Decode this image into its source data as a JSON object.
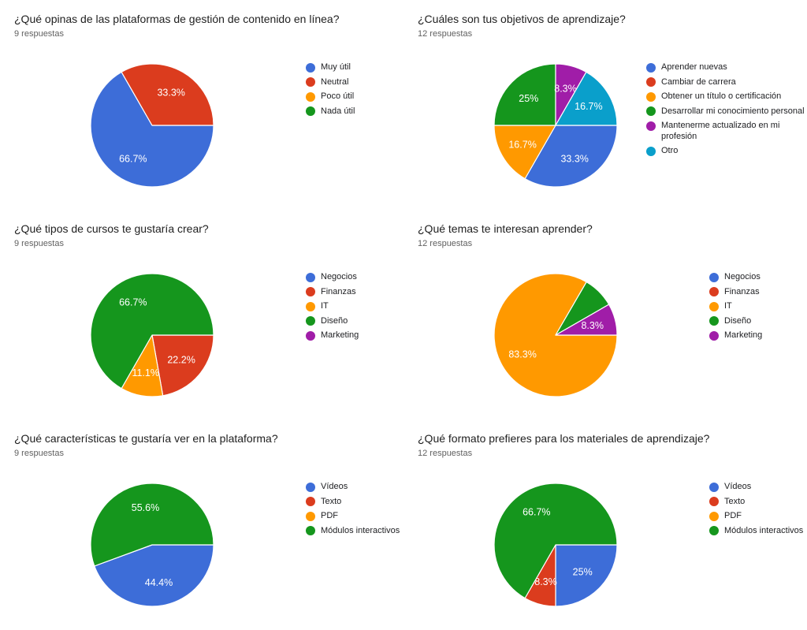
{
  "palette": {
    "blue": "#3D6DD8",
    "red": "#DB3C1E",
    "orange": "#FF9900",
    "green": "#15961D",
    "purple": "#A01DA8",
    "cyan": "#0A9FCB"
  },
  "chart_data": [
    {
      "type": "pie",
      "title": "¿Qué opinas de las plataformas de gestión de contenido en línea?",
      "subtitle": "9 respuestas",
      "legend_position": "right",
      "start_angle_clockwise_from_top_deg": 90,
      "categories": [
        "Muy útil",
        "Neutral",
        "Poco útil",
        "Nada útil"
      ],
      "colors": [
        "blue",
        "red",
        "orange",
        "green"
      ],
      "values_pct": [
        66.7,
        33.3,
        0,
        0
      ],
      "slice_labels": [
        "66.7%",
        "33.3%",
        "",
        ""
      ]
    },
    {
      "type": "pie",
      "title": "¿Cuáles son tus objetivos de aprendizaje?",
      "subtitle": "12 respuestas",
      "legend_position": "right",
      "start_angle_clockwise_from_top_deg": 90,
      "categories": [
        "Aprender nuevas",
        "Cambiar de carrera",
        "Obtener un título o certificación",
        "Desarrollar mi conocimiento personal",
        "Mantenerme actualizado en mi profesión",
        "Otro"
      ],
      "colors": [
        "blue",
        "red",
        "orange",
        "green",
        "purple",
        "cyan"
      ],
      "values_pct": [
        33.3,
        0,
        16.7,
        25,
        8.3,
        16.7
      ],
      "slice_labels": [
        "33.3%",
        "",
        "16.7%",
        "25%",
        "8.3%",
        "16.7%"
      ]
    },
    {
      "type": "pie",
      "title": "¿Qué tipos de cursos te gustaría crear?",
      "subtitle": "9 respuestas",
      "legend_position": "right",
      "start_angle_clockwise_from_top_deg": 90,
      "categories": [
        "Negocios",
        "Finanzas",
        "IT",
        "Diseño",
        "Marketing"
      ],
      "colors": [
        "blue",
        "red",
        "orange",
        "green",
        "purple"
      ],
      "values_pct": [
        0,
        22.2,
        11.1,
        66.7,
        0
      ],
      "slice_labels": [
        "",
        "22.2%",
        "11.1%",
        "66.7%",
        ""
      ]
    },
    {
      "type": "pie",
      "title": "¿Qué temas te interesan aprender?",
      "subtitle": "12 respuestas",
      "legend_position": "right",
      "start_angle_clockwise_from_top_deg": 90,
      "categories": [
        "Negocios",
        "Finanzas",
        "IT",
        "Diseño",
        "Marketing"
      ],
      "colors": [
        "blue",
        "red",
        "orange",
        "green",
        "purple"
      ],
      "values_pct": [
        0,
        0,
        83.3,
        8.3,
        8.3
      ],
      "slice_labels": [
        "",
        "",
        "83.3%",
        "",
        "8.3%"
      ]
    },
    {
      "type": "pie",
      "title": "¿Qué características te gustaría ver en la plataforma?",
      "subtitle": "9 respuestas",
      "legend_position": "right",
      "start_angle_clockwise_from_top_deg": 90,
      "categories": [
        "Vídeos",
        "Texto",
        "PDF",
        "Módulos interactivos"
      ],
      "colors": [
        "blue",
        "red",
        "orange",
        "green"
      ],
      "values_pct": [
        44.4,
        0,
        0,
        55.6
      ],
      "slice_labels": [
        "44.4%",
        "",
        "",
        "55.6%"
      ]
    },
    {
      "type": "pie",
      "title": "¿Qué formato prefieres para los materiales de aprendizaje?",
      "subtitle": "12 respuestas",
      "legend_position": "right",
      "start_angle_clockwise_from_top_deg": 90,
      "categories": [
        "Vídeos",
        "Texto",
        "PDF",
        "Módulos interactivos"
      ],
      "colors": [
        "blue",
        "red",
        "orange",
        "green"
      ],
      "values_pct": [
        25,
        8.3,
        0,
        66.7
      ],
      "slice_labels": [
        "25%",
        "8.3%",
        "",
        "66.7%"
      ]
    }
  ]
}
